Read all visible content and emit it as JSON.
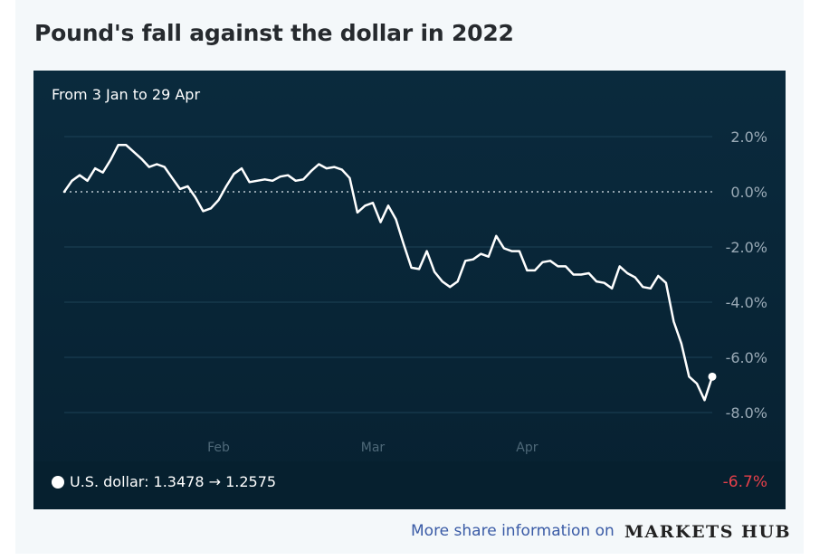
{
  "title": "Pound's fall against the dollar in 2022",
  "subtitle": "From 3 Jan to 29 Apr",
  "legend": {
    "label": "U.S. dollar: 1.3478 → 1.2575",
    "change": "-6.7%"
  },
  "footer": {
    "more_text": "More share information on",
    "brand": "MARKETS HUB"
  },
  "colors": {
    "line": "#ffffff",
    "negative": "#e6404a",
    "link": "#3a5ba6",
    "background": "#0a2a3d"
  },
  "chart_data": {
    "type": "line",
    "title": "Pound's fall against the dollar in 2022",
    "subtitle": "From 3 Jan to 29 Apr",
    "xlabel": "",
    "ylabel": "",
    "ylim": [
      -8,
      2
    ],
    "yticks": [
      2,
      0,
      -2,
      -4,
      -6,
      -8
    ],
    "ytick_labels": [
      "2.0%",
      "0.0%",
      "-2.0%",
      "-4.0%",
      "-6.0%",
      "-8.0%"
    ],
    "xtick_labels": [
      "Feb",
      "Mar",
      "Apr"
    ],
    "grid": true,
    "baseline": 0,
    "series": [
      {
        "name": "U.S. dollar",
        "values": [
          0.0,
          0.4,
          0.6,
          0.4,
          0.85,
          0.7,
          1.15,
          1.7,
          1.7,
          1.45,
          1.2,
          0.9,
          1.0,
          0.9,
          0.5,
          0.1,
          0.2,
          -0.2,
          -0.7,
          -0.6,
          -0.3,
          0.2,
          0.65,
          0.85,
          0.35,
          0.4,
          0.45,
          0.4,
          0.55,
          0.6,
          0.4,
          0.45,
          0.75,
          1.0,
          0.85,
          0.9,
          0.8,
          0.5,
          -0.75,
          -0.5,
          -0.4,
          -1.1,
          -0.5,
          -1.0,
          -1.9,
          -2.75,
          -2.8,
          -2.15,
          -2.9,
          -3.25,
          -3.45,
          -3.25,
          -2.5,
          -2.45,
          -2.25,
          -2.35,
          -1.6,
          -2.05,
          -2.15,
          -2.15,
          -2.85,
          -2.85,
          -2.55,
          -2.5,
          -2.7,
          -2.7,
          -3.0,
          -3.0,
          -2.95,
          -3.25,
          -3.3,
          -3.5,
          -2.7,
          -2.95,
          -3.1,
          -3.45,
          -3.5,
          -3.05,
          -3.3,
          -4.7,
          -5.5,
          -6.7,
          -6.95,
          -7.55,
          -6.7
        ]
      }
    ],
    "end_marker": true
  }
}
